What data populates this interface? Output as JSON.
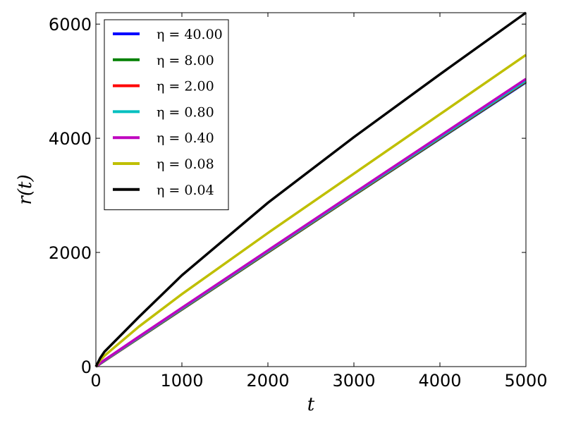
{
  "chart_data": {
    "type": "line",
    "xlabel": "t",
    "ylabel": "r(t)",
    "xlim": [
      0,
      5000
    ],
    "ylim": [
      0,
      6200
    ],
    "xticks": [
      0,
      1000,
      2000,
      3000,
      4000,
      5000
    ],
    "yticks": [
      0,
      2000,
      4000,
      6000
    ],
    "grid": false,
    "legend_position": "top-left",
    "series": [
      {
        "name": "η = 40.00",
        "color": "#0000ff",
        "x": [
          0,
          50,
          100,
          500,
          1000,
          2000,
          3000,
          4000,
          5000
        ],
        "values": [
          0,
          50,
          100,
          500,
          1000,
          2000,
          3000,
          3990,
          4980
        ]
      },
      {
        "name": "η = 8.00",
        "color": "#008000",
        "x": [
          0,
          50,
          100,
          500,
          1000,
          2000,
          3000,
          4000,
          5000
        ],
        "values": [
          0,
          50,
          100,
          500,
          1000,
          2000,
          3000,
          3995,
          4990
        ]
      },
      {
        "name": "η = 2.00",
        "color": "#ff0000",
        "x": [
          0,
          50,
          100,
          500,
          1000,
          2000,
          3000,
          4000,
          5000
        ],
        "values": [
          0,
          52,
          103,
          505,
          1008,
          2010,
          3010,
          4005,
          5000
        ]
      },
      {
        "name": "η = 0.80",
        "color": "#00bfbf",
        "x": [
          0,
          50,
          100,
          500,
          1000,
          2000,
          3000,
          4000,
          5000
        ],
        "values": [
          0,
          55,
          108,
          512,
          1015,
          2018,
          3020,
          4015,
          5010
        ]
      },
      {
        "name": "η = 0.40",
        "color": "#bf00bf",
        "x": [
          0,
          50,
          100,
          500,
          1000,
          2000,
          3000,
          4000,
          5000
        ],
        "values": [
          0,
          60,
          115,
          525,
          1030,
          2035,
          3040,
          4040,
          5040
        ]
      },
      {
        "name": "η = 0.08",
        "color": "#bfbf00",
        "x": [
          0,
          50,
          100,
          500,
          1000,
          2000,
          3000,
          4000,
          5000
        ],
        "values": [
          0,
          110,
          190,
          700,
          1270,
          2340,
          3380,
          4420,
          5460
        ]
      },
      {
        "name": "η = 0.04",
        "color": "#000000",
        "x": [
          0,
          50,
          100,
          500,
          1000,
          2000,
          3000,
          4000,
          5000
        ],
        "values": [
          0,
          150,
          260,
          870,
          1600,
          2870,
          4020,
          5120,
          6200
        ]
      }
    ]
  }
}
